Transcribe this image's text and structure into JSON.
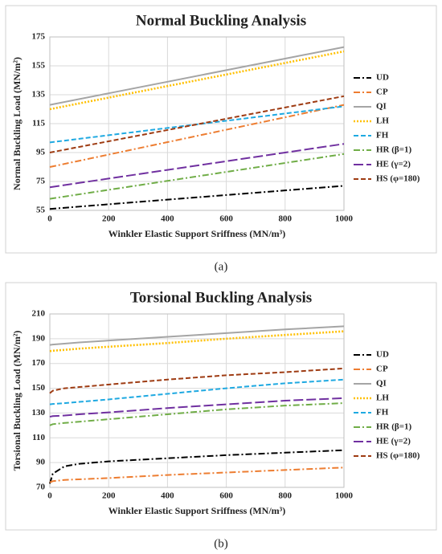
{
  "chart_data": [
    {
      "type": "line",
      "title": "Normal Buckling Analysis",
      "caption": "(a)",
      "x_label": "Winkler Elastic Support Sriffness (MN/m³)",
      "y_label": "Normal Buckling Load (MN/m²)",
      "x": [
        0,
        200,
        400,
        600,
        800,
        1000
      ],
      "xlim": [
        0,
        1000
      ],
      "xticks": [
        0,
        200,
        400,
        600,
        800,
        1000
      ],
      "ylim": [
        55,
        175
      ],
      "yticks": [
        55,
        75,
        95,
        115,
        135,
        155,
        175
      ],
      "grid": true,
      "series": [
        {
          "name": "UD",
          "color": "#000000",
          "style": "dashdot",
          "values": [
            56,
            59.2,
            62.4,
            65.6,
            68.8,
            72
          ]
        },
        {
          "name": "CP",
          "color": "#ed7d31",
          "style": "dashdot",
          "values": [
            85,
            93.6,
            102.2,
            110.8,
            119.4,
            128
          ]
        },
        {
          "name": "QI",
          "color": "#a5a5a5",
          "style": "solid",
          "values": [
            128,
            136,
            144,
            152,
            160,
            168
          ]
        },
        {
          "name": "LH",
          "color": "#ffc000",
          "style": "dot",
          "values": [
            125,
            133,
            141,
            149,
            157,
            165
          ]
        },
        {
          "name": "FH",
          "color": "#1fa9e1",
          "style": "dash",
          "values": [
            102,
            107,
            112,
            117,
            122,
            127
          ]
        },
        {
          "name": "HR (β=1)",
          "color": "#70ad47",
          "style": "dashdot",
          "values": [
            63,
            69.2,
            75.4,
            81.6,
            87.8,
            94
          ]
        },
        {
          "name": "HE (γ=2)",
          "color": "#7030a0",
          "style": "longdash",
          "values": [
            71,
            77,
            83,
            89,
            95,
            101
          ]
        },
        {
          "name": "HS (φ=180)",
          "color": "#9e3b12",
          "style": "dash",
          "values": [
            95,
            102.8,
            110.6,
            118.4,
            126.2,
            134
          ]
        }
      ]
    },
    {
      "type": "line",
      "title": "Torsional Buckling Analysis",
      "caption": "(b)",
      "x_label": "Winkler Elastic Support Sriffness (MN/m³)",
      "y_label": "Torsional Buckling Load (MN/m²)",
      "x": [
        0,
        10,
        50,
        100,
        200,
        400,
        600,
        800,
        1000
      ],
      "xlim": [
        0,
        1000
      ],
      "xticks": [
        0,
        200,
        400,
        600,
        800,
        1000
      ],
      "ylim": [
        70,
        210
      ],
      "yticks": [
        70,
        90,
        110,
        130,
        150,
        170,
        190,
        210
      ],
      "grid": true,
      "series": [
        {
          "name": "UD",
          "color": "#000000",
          "style": "dashdot",
          "values": [
            73,
            81,
            87,
            89,
            91,
            93.5,
            96,
            98,
            100
          ]
        },
        {
          "name": "CP",
          "color": "#ed7d31",
          "style": "dashdot",
          "values": [
            74,
            75,
            76,
            76.5,
            77.5,
            80,
            82,
            84,
            86
          ]
        },
        {
          "name": "QI",
          "color": "#a5a5a5",
          "style": "solid",
          "values": [
            185,
            185.3,
            186,
            187,
            188.5,
            191.5,
            194.5,
            197.5,
            200
          ]
        },
        {
          "name": "LH",
          "color": "#ffc000",
          "style": "dot",
          "values": [
            180,
            180.3,
            181,
            182,
            183.5,
            186.5,
            190,
            193,
            196
          ]
        },
        {
          "name": "FH",
          "color": "#1fa9e1",
          "style": "dash",
          "values": [
            137,
            137.3,
            138,
            139,
            141,
            145.5,
            150,
            154,
            157
          ]
        },
        {
          "name": "HR (β=1)",
          "color": "#70ad47",
          "style": "dashdot",
          "values": [
            120,
            121,
            122,
            123,
            125,
            129,
            133,
            136,
            138
          ]
        },
        {
          "name": "HE (γ=2)",
          "color": "#7030a0",
          "style": "longdash",
          "values": [
            127,
            127.5,
            128,
            129,
            130.5,
            134,
            137,
            140,
            142
          ]
        },
        {
          "name": "HS (φ=180)",
          "color": "#9e3b12",
          "style": "dash",
          "values": [
            146,
            148,
            150,
            151,
            153,
            157,
            160.5,
            163,
            166
          ]
        }
      ]
    }
  ]
}
